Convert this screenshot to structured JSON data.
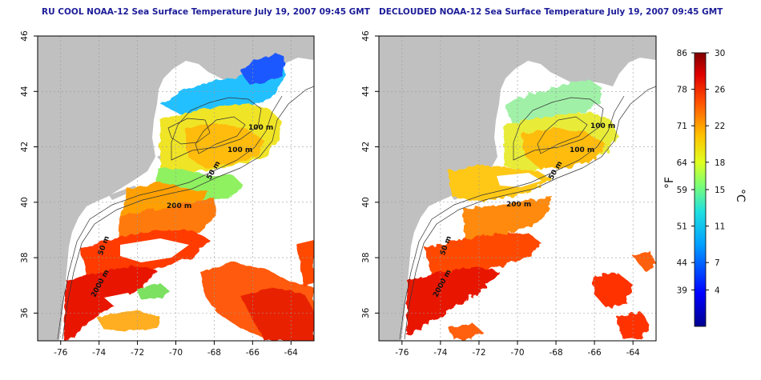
{
  "panels": [
    {
      "id": "left",
      "title": "RU COOL NOAA-12 Sea Surface Temperature July 19, 2007 09:45 GMT"
    },
    {
      "id": "right",
      "title": "DECLOUDED NOAA-12 Sea Surface Temperature July 19, 2007 09:45 GMT"
    }
  ],
  "axes": {
    "lon_ticks": [
      -76,
      -74,
      -72,
      -70,
      -68,
      -66,
      -64
    ],
    "lat_ticks": [
      46,
      44,
      42,
      40,
      38,
      36
    ],
    "lon_range": [
      -77.2,
      -62.8
    ],
    "lat_range": [
      35,
      46
    ],
    "grid": "dotted"
  },
  "isobath_labels": [
    "100 m",
    "100 m",
    "50 m",
    "200 m",
    "50 m",
    "2000 m"
  ],
  "colorbar": {
    "fahrenheit_label": "°F",
    "celsius_label": "°C",
    "fahrenheit_ticks": [
      "86",
      "78",
      "71",
      "64",
      "59",
      "51",
      "44",
      "39"
    ],
    "celsius_ticks": [
      "30",
      "26",
      "22",
      "18",
      "15",
      "11",
      "7",
      "4"
    ],
    "celsius_range": [
      0,
      30
    ]
  },
  "colors": {
    "land": "#c0c0c0",
    "title": "#1c1c99",
    "frame": "#000000"
  }
}
